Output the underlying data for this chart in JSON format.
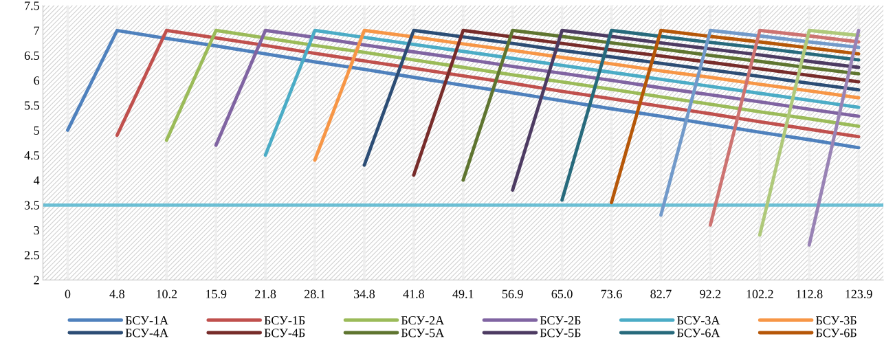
{
  "chart_data": {
    "type": "line",
    "categories": [
      "0",
      "4.8",
      "10.2",
      "15.9",
      "21.8",
      "28.1",
      "34.8",
      "41.8",
      "49.1",
      "56.9",
      "65.0",
      "73.6",
      "82.7",
      "92.2",
      "102.2",
      "112.8",
      "123.9"
    ],
    "series": [
      {
        "name": "БСУ-1А",
        "color": "#4f81bd",
        "values": [
          5.0,
          7,
          6.84,
          6.69,
          6.53,
          6.37,
          6.22,
          6.06,
          5.9,
          5.75,
          5.59,
          5.43,
          5.28,
          5.12,
          4.96,
          4.81,
          4.65
        ]
      },
      {
        "name": "БСУ-1Б",
        "color": "#c0504d",
        "values": [
          null,
          4.9,
          7,
          6.85,
          6.7,
          6.54,
          6.39,
          6.24,
          6.09,
          5.94,
          5.78,
          5.63,
          5.48,
          5.33,
          5.17,
          5.02,
          4.87
        ]
      },
      {
        "name": "БСУ-2А",
        "color": "#9bbb59",
        "values": [
          null,
          null,
          4.8,
          7,
          6.85,
          6.7,
          6.56,
          6.41,
          6.26,
          6.11,
          5.97,
          5.82,
          5.67,
          5.52,
          5.37,
          5.23,
          5.08
        ]
      },
      {
        "name": "БСУ-2Б",
        "color": "#8064a2",
        "values": [
          null,
          null,
          null,
          4.7,
          7,
          6.86,
          6.71,
          6.57,
          6.43,
          6.28,
          6.14,
          6.0,
          5.85,
          5.71,
          5.57,
          5.42,
          5.28
        ]
      },
      {
        "name": "БСУ-3А",
        "color": "#4bacc6",
        "values": [
          null,
          null,
          null,
          null,
          4.5,
          7,
          6.86,
          6.72,
          6.58,
          6.44,
          6.3,
          6.16,
          6.02,
          5.88,
          5.74,
          5.6,
          5.46
        ]
      },
      {
        "name": "БСУ-3Б",
        "color": "#f79646",
        "values": [
          null,
          null,
          null,
          null,
          null,
          4.4,
          7,
          6.87,
          6.73,
          6.6,
          6.46,
          6.33,
          6.19,
          6.06,
          5.92,
          5.79,
          5.65
        ]
      },
      {
        "name": "БСУ-4А",
        "color": "#2c4d75",
        "values": [
          null,
          null,
          null,
          null,
          null,
          null,
          4.3,
          7,
          6.87,
          6.74,
          6.6,
          6.47,
          6.34,
          6.21,
          6.08,
          5.94,
          5.81
        ]
      },
      {
        "name": "БСУ-4Б",
        "color": "#772c2a",
        "values": [
          null,
          null,
          null,
          null,
          null,
          null,
          null,
          4.1,
          7,
          6.87,
          6.74,
          6.61,
          6.49,
          6.36,
          6.23,
          6.1,
          5.97
        ]
      },
      {
        "name": "БСУ-5А",
        "color": "#5f7530",
        "values": [
          null,
          null,
          null,
          null,
          null,
          null,
          null,
          null,
          4.0,
          7,
          6.88,
          6.75,
          6.63,
          6.5,
          6.38,
          6.25,
          6.13
        ]
      },
      {
        "name": "БСУ-5Б",
        "color": "#4d3b62",
        "values": [
          null,
          null,
          null,
          null,
          null,
          null,
          null,
          null,
          null,
          3.8,
          7,
          6.88,
          6.75,
          6.63,
          6.51,
          6.38,
          6.26
        ]
      },
      {
        "name": "БСУ-6А",
        "color": "#276a7c",
        "values": [
          null,
          null,
          null,
          null,
          null,
          null,
          null,
          null,
          null,
          null,
          3.6,
          7,
          6.88,
          6.76,
          6.65,
          6.53,
          6.41
        ]
      },
      {
        "name": "БСУ-6Б",
        "color": "#b65708",
        "values": [
          null,
          null,
          null,
          null,
          null,
          null,
          null,
          null,
          null,
          null,
          null,
          3.55,
          7,
          6.88,
          6.77,
          6.65,
          6.53
        ]
      },
      {
        "color": "#729aca",
        "values": [
          null,
          null,
          null,
          null,
          null,
          null,
          null,
          null,
          null,
          null,
          null,
          null,
          3.3,
          7,
          6.89,
          6.77,
          6.66
        ]
      },
      {
        "color": "#cd7371",
        "values": [
          null,
          null,
          null,
          null,
          null,
          null,
          null,
          null,
          null,
          null,
          null,
          null,
          null,
          3.1,
          7,
          6.89,
          6.77
        ]
      },
      {
        "color": "#afc97a",
        "values": [
          null,
          null,
          null,
          null,
          null,
          null,
          null,
          null,
          null,
          null,
          null,
          null,
          null,
          null,
          2.9,
          7,
          6.9
        ]
      },
      {
        "color": "#9983b5",
        "values": [
          null,
          null,
          null,
          null,
          null,
          null,
          null,
          null,
          null,
          null,
          null,
          null,
          null,
          null,
          null,
          2.7,
          7
        ]
      }
    ],
    "ref_lines": [
      {
        "axis": "y",
        "value": 3.5,
        "color": "#6cbfd4",
        "line_style": "solid"
      }
    ],
    "ylim": [
      2,
      7.5
    ],
    "yticks": [
      2,
      2.5,
      3,
      3.5,
      4,
      4.5,
      5,
      5.5,
      6,
      6.5,
      7,
      7.5
    ],
    "grid": "x",
    "legend": "bottom",
    "marker": "none",
    "line_style": "solid"
  }
}
